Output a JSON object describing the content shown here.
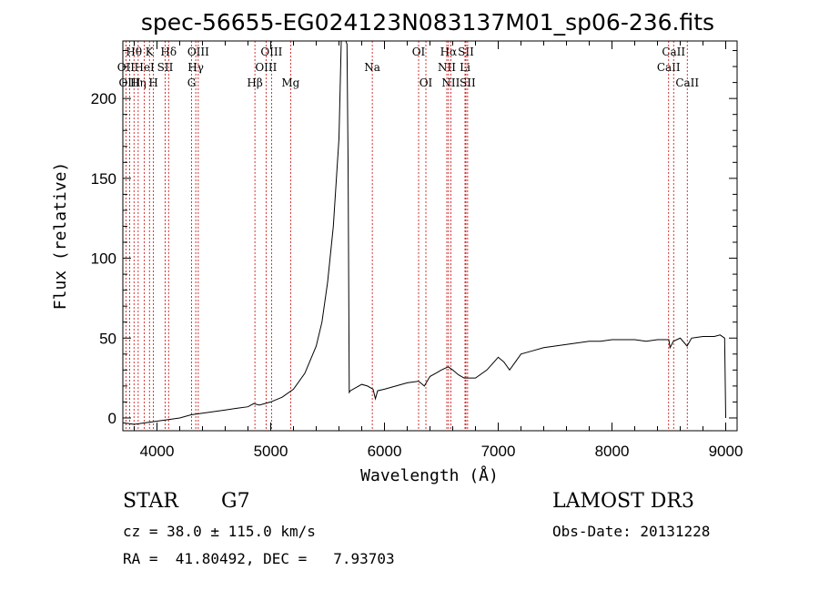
{
  "chart_data": {
    "type": "line",
    "title": "spec-56655-EG024123N083137M01_sp06-236.fits",
    "xlabel": "Wavelength (Å)",
    "ylabel": "Flux (relative)",
    "xlim": [
      3700,
      9100
    ],
    "ylim": [
      -8,
      236
    ],
    "xticks": [
      4000,
      5000,
      6000,
      7000,
      8000,
      9000
    ],
    "yticks": [
      0,
      50,
      100,
      150,
      200
    ],
    "series": [
      {
        "name": "flux",
        "x": [
          3700,
          3800,
          3900,
          4000,
          4100,
          4200,
          4300,
          4400,
          4500,
          4600,
          4700,
          4800,
          4850,
          4900,
          5000,
          5100,
          5200,
          5300,
          5400,
          5450,
          5500,
          5550,
          5600,
          5620,
          5640,
          5660,
          5670,
          5680,
          5690,
          5700,
          5750,
          5800,
          5850,
          5900,
          5920,
          5940,
          6000,
          6100,
          6200,
          6300,
          6350,
          6400,
          6450,
          6500,
          6560,
          6600,
          6650,
          6700,
          6800,
          6900,
          6950,
          7000,
          7050,
          7100,
          7150,
          7200,
          7300,
          7400,
          7500,
          7600,
          7700,
          7800,
          7900,
          8000,
          8100,
          8200,
          8300,
          8400,
          8500,
          8510,
          8540,
          8600,
          8660,
          8700,
          8800,
          8900,
          8950,
          8990,
          9000
        ],
        "y": [
          -3,
          -4,
          -3,
          -2,
          -1,
          0,
          2,
          3,
          4,
          5,
          6,
          7,
          9,
          8,
          10,
          13,
          18,
          28,
          45,
          60,
          85,
          120,
          175,
          236,
          236,
          236,
          234,
          160,
          16,
          17,
          19,
          21,
          20,
          18,
          12,
          17,
          18,
          20,
          22,
          23,
          20,
          26,
          28,
          30,
          32,
          30,
          27,
          25,
          25,
          30,
          34,
          38,
          35,
          30,
          35,
          40,
          42,
          44,
          45,
          46,
          47,
          48,
          48,
          49,
          49,
          49,
          48,
          49,
          49,
          44,
          48,
          50,
          45,
          50,
          51,
          51,
          52,
          50,
          0
        ]
      }
    ],
    "lines": [
      {
        "label": "Hθ",
        "x": 3798,
        "row": 0
      },
      {
        "label": "OII",
        "x": 3727,
        "row": 1
      },
      {
        "label": "OIII",
        "x": 3760,
        "row": 2
      },
      {
        "label": "Hη",
        "x": 3835,
        "row": 2
      },
      {
        "label": "HeI",
        "x": 3889,
        "row": 1
      },
      {
        "label": "K",
        "x": 3934,
        "row": 0
      },
      {
        "label": "H",
        "x": 3969,
        "row": 2
      },
      {
        "label": "SII",
        "x": 4072,
        "row": 1
      },
      {
        "label": "Hδ",
        "x": 4102,
        "row": 0
      },
      {
        "label": "G",
        "x": 4304,
        "row": 2
      },
      {
        "label": "Hγ",
        "x": 4341,
        "row": 1
      },
      {
        "label": "OIII",
        "x": 4363,
        "row": 0
      },
      {
        "label": "Hβ",
        "x": 4861,
        "row": 2
      },
      {
        "label": "OIII",
        "x": 4959,
        "row": 1
      },
      {
        "label": "OIII",
        "x": 5007,
        "row": 0
      },
      {
        "label": "Mg",
        "x": 5175,
        "row": 2
      },
      {
        "label": "Na",
        "x": 5893,
        "row": 1
      },
      {
        "label": "OI",
        "x": 6300,
        "row": 0
      },
      {
        "label": "OI",
        "x": 6364,
        "row": 2
      },
      {
        "label": "NII",
        "x": 6548,
        "row": 1
      },
      {
        "label": "Hα",
        "x": 6563,
        "row": 0
      },
      {
        "label": "NII",
        "x": 6583,
        "row": 2
      },
      {
        "label": "SII",
        "x": 6716,
        "row": 0
      },
      {
        "label": "Li",
        "x": 6708,
        "row": 1
      },
      {
        "label": "SII",
        "x": 6731,
        "row": 2
      },
      {
        "label": "CaII",
        "x": 8498,
        "row": 1
      },
      {
        "label": "CaII",
        "x": 8542,
        "row": 0
      },
      {
        "label": "CaII",
        "x": 8662,
        "row": 2
      }
    ]
  },
  "info": {
    "object_class": "STAR",
    "subclass": "G7",
    "survey": "LAMOST DR3",
    "cz": "cz = 38.0 ± 115.0 km/s",
    "obs_date": "Obs-Date: 20131228",
    "coords": "RA =  41.80492, DEC =   7.93703"
  },
  "colors": {
    "spectrum": "#000000",
    "line_marker": "#cc0000",
    "frame": "#000000"
  }
}
